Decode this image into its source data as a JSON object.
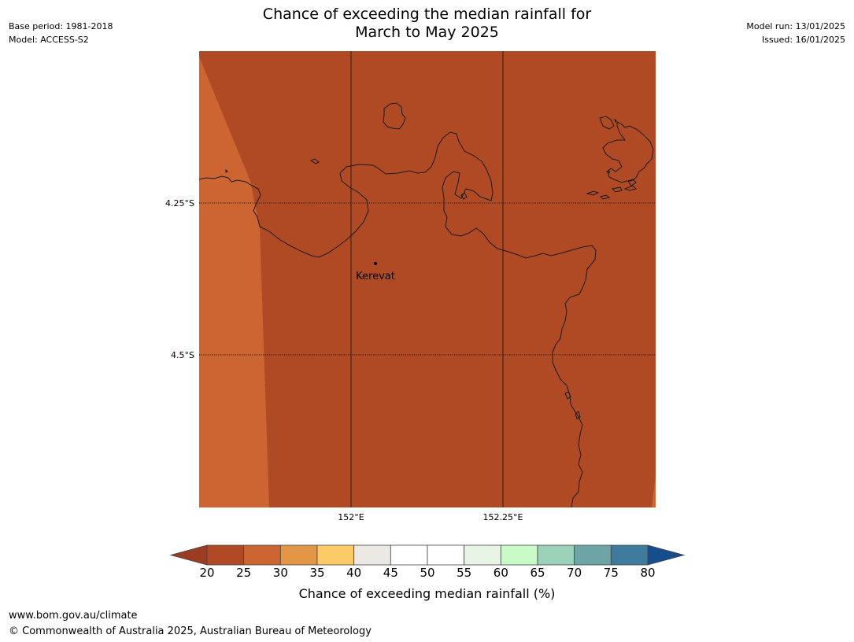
{
  "meta": {
    "base_period": "Base period: 1981-2018",
    "model": "Model: ACCESS-S2",
    "model_run": "Model run: 13/01/2025",
    "issued": "Issued: 16/01/2025"
  },
  "title": {
    "line1": "Chance of exceeding the median rainfall for",
    "line2": "March to May 2025"
  },
  "map": {
    "place": "Kerevat",
    "lat_ticks": [
      "4.25°S",
      "4.5°S"
    ],
    "lon_ticks": [
      "152°E",
      "152.25°E"
    ],
    "colors": {
      "fill_20_25": "#b04a25",
      "fill_25_30": "#cc6531",
      "coastline": "#1a1a1a"
    }
  },
  "colorbar": {
    "label": "Chance of exceeding median rainfall (%)",
    "ticks": [
      "20",
      "25",
      "30",
      "35",
      "40",
      "45",
      "50",
      "55",
      "60",
      "65",
      "70",
      "75",
      "80"
    ],
    "below_color": "#9c3c22",
    "above_color": "#164d8c",
    "colors": [
      "#b04a25",
      "#cc6531",
      "#e39645",
      "#fdca68",
      "#ece8e3",
      "#ffffff",
      "#ffffff",
      "#e8f5e6",
      "#c8fbc8",
      "#9cd2b9",
      "#6da5a6",
      "#3f7b9c"
    ]
  },
  "footer": {
    "url": "www.bom.gov.au/climate",
    "copyright": "© Commonwealth of Australia 2025, Australian Bureau of Meteorology"
  }
}
